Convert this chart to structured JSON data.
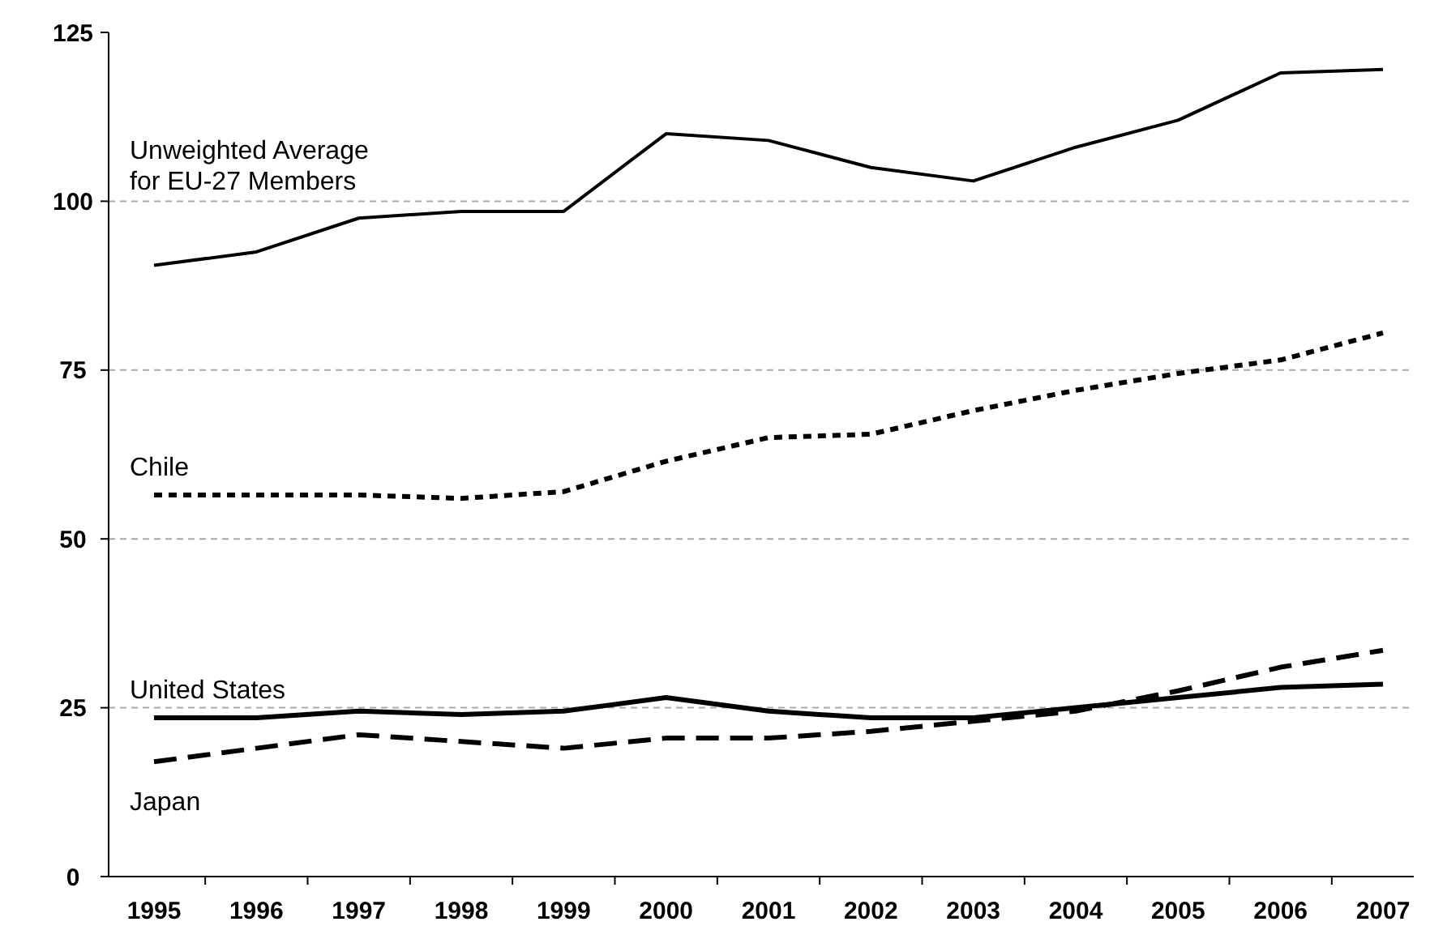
{
  "chart_data": {
    "type": "line",
    "categories": [
      "1995",
      "1996",
      "1997",
      "1998",
      "1999",
      "2000",
      "2001",
      "2002",
      "2003",
      "2004",
      "2005",
      "2006",
      "2007"
    ],
    "ylim": [
      0,
      125
    ],
    "yticks": [
      0,
      25,
      50,
      75,
      100,
      125
    ],
    "grid": "y",
    "series": [
      {
        "name": "Unweighted Average for EU-27 Members",
        "color": "#000000",
        "line_style": "solid",
        "values": [
          90.5,
          92.5,
          97.5,
          98.5,
          98.5,
          110,
          109,
          105,
          103,
          108,
          112,
          119,
          119.5
        ]
      },
      {
        "name": "Chile",
        "color": "#000000",
        "line_style": "dotted",
        "values": [
          56.5,
          56.5,
          56.5,
          56,
          57,
          61.5,
          65,
          65.5,
          69,
          72,
          74.5,
          76.5,
          80.5
        ]
      },
      {
        "name": "United States",
        "color": "#000000",
        "line_style": "solid",
        "values": [
          23.5,
          23.5,
          24.5,
          24,
          24.5,
          26.5,
          24.5,
          23.5,
          23.5,
          25,
          26.5,
          28,
          28.5
        ]
      },
      {
        "name": "Japan",
        "color": "#000000",
        "line_style": "dashed",
        "values": [
          17,
          19,
          21,
          20,
          19,
          20.5,
          20.5,
          21.5,
          23,
          24.5,
          27.5,
          31,
          33.5
        ]
      }
    ]
  }
}
